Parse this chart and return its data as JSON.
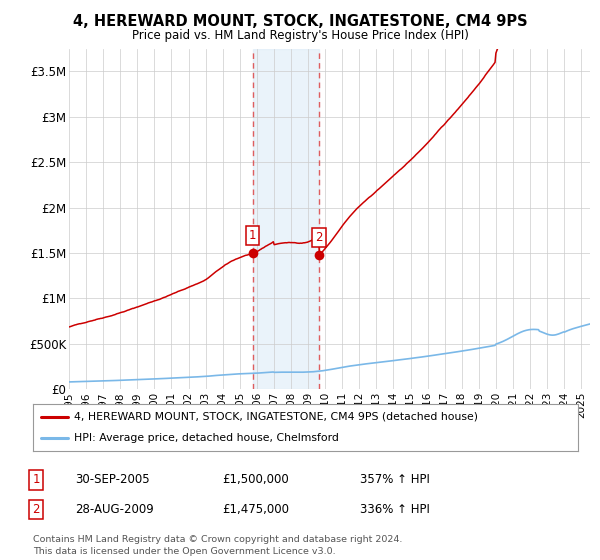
{
  "title": "4, HEREWARD MOUNT, STOCK, INGATESTONE, CM4 9PS",
  "subtitle": "Price paid vs. HM Land Registry's House Price Index (HPI)",
  "sale1_date": 2005.75,
  "sale1_price": 1500000,
  "sale2_date": 2009.65,
  "sale2_price": 1475000,
  "hpi_line_color": "#7ab8e8",
  "price_line_color": "#cc0000",
  "shade_color": "#ddeeff",
  "legend_line1": "4, HEREWARD MOUNT, STOCK, INGATESTONE, CM4 9PS (detached house)",
  "legend_line2": "HPI: Average price, detached house, Chelmsford",
  "sale1_text": "30-SEP-2005",
  "sale1_price_str": "£1,500,000",
  "sale1_pct": "357% ↑ HPI",
  "sale2_text": "28-AUG-2009",
  "sale2_price_str": "£1,475,000",
  "sale2_pct": "336% ↑ HPI",
  "footer1": "Contains HM Land Registry data © Crown copyright and database right 2024.",
  "footer2": "This data is licensed under the Open Government Licence v3.0.",
  "ylim_max": 3750000,
  "yticks": [
    0,
    500000,
    1000000,
    1500000,
    2000000,
    2500000,
    3000000,
    3500000
  ],
  "ytick_labels": [
    "£0",
    "£500K",
    "£1M",
    "£1.5M",
    "£2M",
    "£2.5M",
    "£3M",
    "£3.5M"
  ],
  "xmin": 1995.0,
  "xmax": 2025.5
}
